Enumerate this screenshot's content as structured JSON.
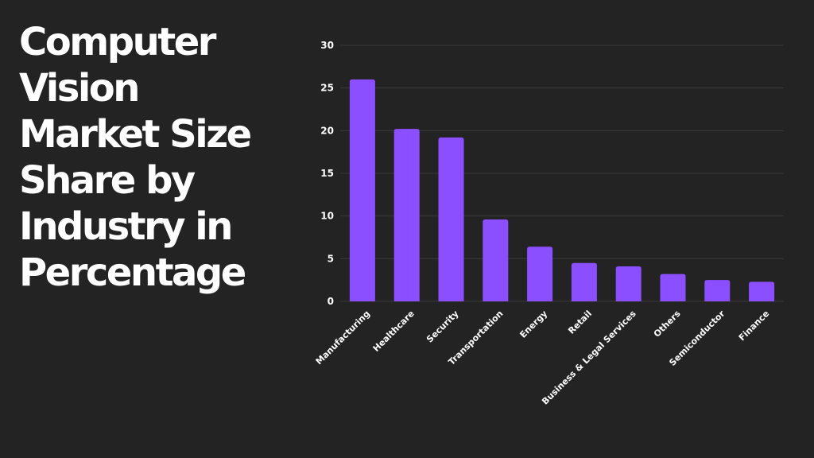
{
  "title_lines": [
    "Computer",
    "Vision",
    "Market Size",
    "Share by",
    "Industry in",
    "Percentage"
  ],
  "colors": {
    "background": "#232323",
    "bar": "#8c4fff",
    "grid": "#3a3a3a",
    "text": "#ffffff"
  },
  "chart_data": {
    "type": "bar",
    "title": "",
    "xlabel": "",
    "ylabel": "",
    "categories": [
      "Manufacturing",
      "Healthcare",
      "Security",
      "Transportation",
      "Energy",
      "Retail",
      "Business & Legal Services",
      "Others",
      "Semiconductor",
      "Finance"
    ],
    "values": [
      26,
      20.2,
      19.2,
      9.6,
      6.4,
      4.5,
      4.1,
      3.2,
      2.5,
      2.3
    ],
    "ylim": [
      0,
      30
    ],
    "yticks": [
      0,
      5,
      10,
      15,
      20,
      25,
      30
    ],
    "grid": true,
    "legend": "none"
  }
}
